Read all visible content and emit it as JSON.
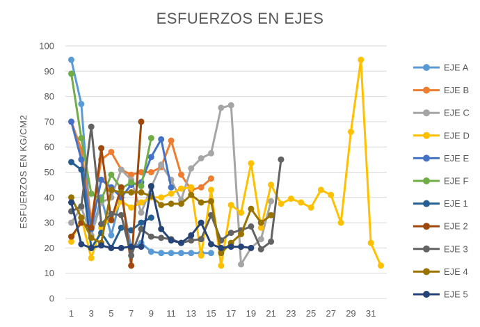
{
  "chart_data": {
    "type": "line",
    "title": "ESFUERZOS EN EJES",
    "xlabel": "",
    "ylabel": "ESFUERZOS EN KG/CM2",
    "xlim": [
      1,
      32
    ],
    "ylim": [
      0,
      100
    ],
    "y_ticks": [
      0,
      10,
      20,
      30,
      40,
      50,
      60,
      70,
      80,
      90,
      100
    ],
    "x_ticks": [
      1,
      3,
      5,
      7,
      9,
      11,
      13,
      15,
      17,
      19,
      21,
      23,
      25,
      27,
      29,
      31
    ],
    "grid": "horizontal",
    "legend_position": "right",
    "series": [
      {
        "name": "EJE A",
        "color": "#5b9bd5",
        "values": [
          94.5,
          77,
          25,
          40,
          25,
          41,
          20,
          22,
          18.5,
          18,
          18,
          18,
          18,
          18,
          18,
          null,
          null,
          null,
          null,
          null,
          null,
          null,
          null,
          null,
          null,
          null,
          null,
          null,
          null,
          null,
          null,
          null
        ]
      },
      {
        "name": "EJE B",
        "color": "#ed7d31",
        "values": [
          70,
          59,
          31,
          55,
          58,
          51,
          49,
          50,
          50,
          52,
          62.5,
          49,
          43,
          44,
          47.5,
          null,
          null,
          null,
          null,
          null,
          null,
          null,
          null,
          null,
          null,
          null,
          null,
          null,
          null,
          null,
          null,
          null
        ]
      },
      {
        "name": "EJE C",
        "color": "#a5a5a5",
        "values": [
          30,
          36,
          25,
          38,
          40,
          51,
          47,
          34,
          44,
          53,
          47,
          39,
          51.5,
          55.5,
          57.5,
          75.5,
          76.5,
          13.5,
          20,
          23.5,
          38.5,
          null,
          null,
          null,
          null,
          null,
          null,
          null,
          null,
          null,
          null,
          null
        ]
      },
      {
        "name": "EJE D",
        "color": "#ffc000",
        "values": [
          22.5,
          32,
          16,
          28,
          32,
          38.5,
          36,
          38,
          40,
          40,
          41.5,
          43.5,
          44,
          17,
          43,
          13,
          37,
          34,
          53.5,
          28,
          45,
          37.5,
          39.5,
          38,
          36,
          43,
          41,
          30,
          66,
          94.5,
          22,
          13
        ]
      },
      {
        "name": "EJE E",
        "color": "#4472c4",
        "values": [
          70,
          55,
          27.5,
          47,
          44,
          40,
          45,
          46,
          56,
          63,
          44,
          null,
          null,
          null,
          null,
          null,
          null,
          null,
          null,
          null,
          null,
          null,
          null,
          null,
          null,
          null,
          null,
          null,
          null,
          null,
          null,
          null
        ]
      },
      {
        "name": "EJE F",
        "color": "#70ad47",
        "values": [
          89,
          63.5,
          41.5,
          39,
          49,
          43.5,
          46,
          44.5,
          63.5,
          null,
          null,
          null,
          null,
          null,
          null,
          null,
          null,
          null,
          null,
          null,
          null,
          null,
          null,
          null,
          null,
          null,
          null,
          null,
          null,
          null,
          null,
          null
        ]
      },
      {
        "name": "EJE 1",
        "color": "#255e91",
        "values": [
          54,
          51,
          20,
          26,
          20,
          28,
          27,
          30,
          32,
          null,
          null,
          null,
          null,
          null,
          null,
          null,
          null,
          null,
          null,
          null,
          null,
          null,
          null,
          null,
          null,
          null,
          null,
          null,
          null,
          null,
          null,
          null
        ]
      },
      {
        "name": "EJE 2",
        "color": "#9e480e",
        "values": [
          24.5,
          30,
          28,
          59.5,
          31,
          44,
          13,
          70,
          null,
          null,
          null,
          null,
          null,
          null,
          null,
          null,
          null,
          null,
          null,
          null,
          null,
          null,
          null,
          null,
          null,
          null,
          null,
          null,
          null,
          null,
          null,
          null
        ]
      },
      {
        "name": "EJE 3",
        "color": "#636363",
        "values": [
          34.5,
          36.5,
          68,
          29.5,
          33.5,
          33,
          17,
          27.5,
          24.5,
          24,
          23.5,
          22,
          23,
          23.5,
          33,
          23,
          26,
          27,
          28.5,
          19.5,
          22.5,
          55,
          null,
          null,
          null,
          null,
          null,
          null,
          null,
          null,
          null,
          null
        ]
      },
      {
        "name": "EJE 4",
        "color": "#997300",
        "values": [
          40,
          32,
          24,
          22,
          43,
          42,
          42,
          42,
          40.5,
          37,
          37.5,
          37.5,
          41,
          38,
          38.5,
          18,
          22,
          25.5,
          35.5,
          30,
          33,
          null,
          null,
          null,
          null,
          null,
          null,
          null,
          null,
          null,
          null,
          null
        ]
      },
      {
        "name": "EJE 5",
        "color": "#264478",
        "values": [
          38,
          21.5,
          20,
          21,
          20,
          20,
          20.5,
          20.5,
          44.5,
          27.5,
          23,
          22,
          25,
          30,
          21.5,
          20,
          20.5,
          20.5,
          20,
          null,
          null,
          null,
          null,
          null,
          null,
          null,
          null,
          null,
          null,
          null,
          null,
          null
        ]
      }
    ]
  }
}
